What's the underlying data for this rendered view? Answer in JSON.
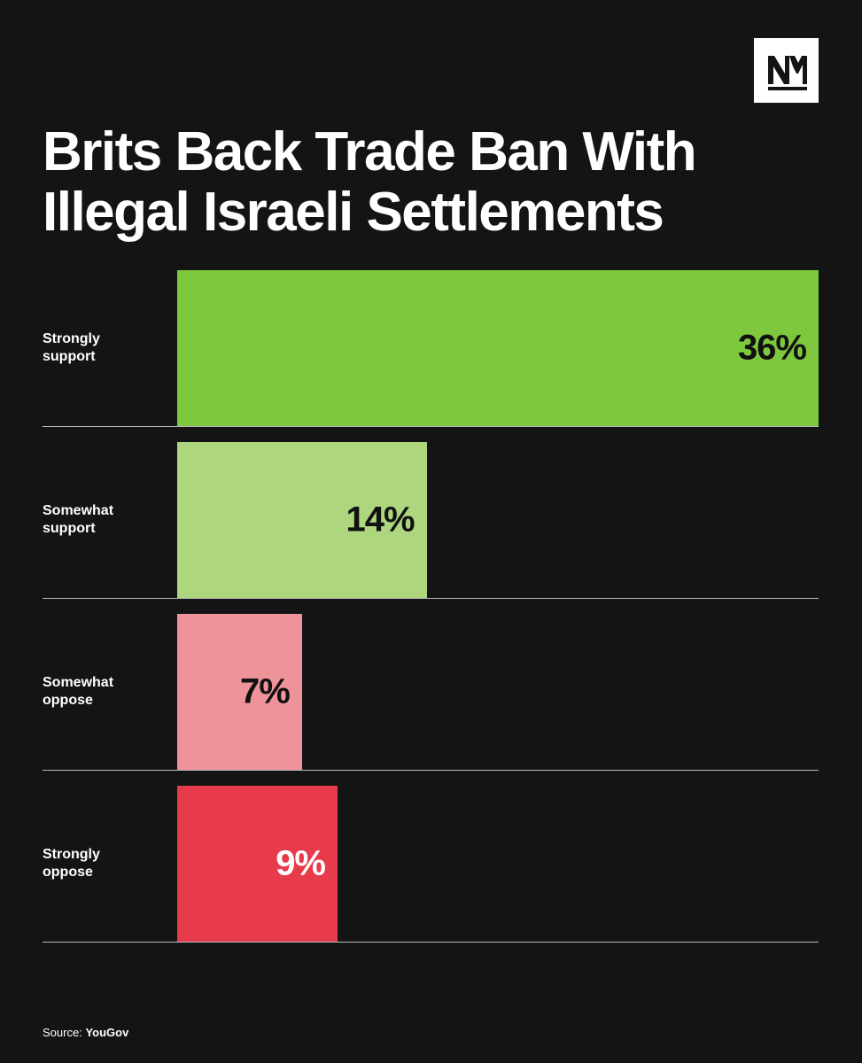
{
  "chart_data": {
    "type": "hbar",
    "title": "Brits Back Trade Ban With Illegal Israeli Settlements",
    "categories": [
      "Strongly support",
      "Somewhat support",
      "Somewhat oppose",
      "Strongly oppose"
    ],
    "values": [
      36,
      14,
      7,
      9
    ],
    "value_labels": [
      "36%",
      "14%",
      "7%",
      "9%"
    ],
    "colors": [
      "#7dc83c",
      "#aed67f",
      "#ee9399",
      "#e73a4a"
    ],
    "label_colors": [
      "#111111",
      "#111111",
      "#111111",
      "#ffffff"
    ],
    "source_label": "Source:",
    "source": "YouGov"
  }
}
